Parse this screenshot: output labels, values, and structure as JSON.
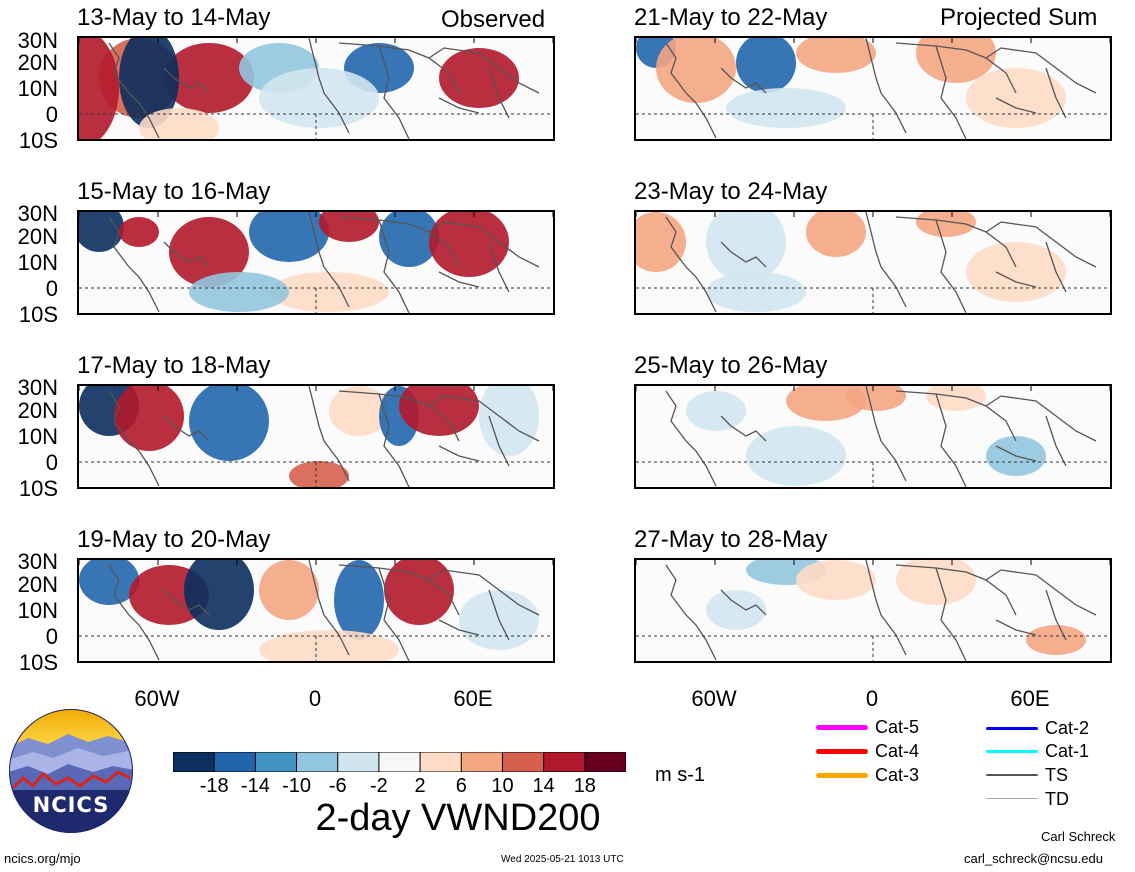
{
  "header": {
    "left_label": "Observed",
    "right_label": "Projected Sum"
  },
  "panels_left": [
    {
      "title": "13-May to 14-May"
    },
    {
      "title": "15-May to 16-May"
    },
    {
      "title": "17-May to 18-May"
    },
    {
      "title": "19-May to 20-May"
    }
  ],
  "panels_right": [
    {
      "title": "21-May to 22-May"
    },
    {
      "title": "23-May to 24-May"
    },
    {
      "title": "25-May to 26-May"
    },
    {
      "title": "27-May to 28-May"
    }
  ],
  "lat_labels": [
    "30N",
    "20N",
    "10N",
    "0",
    "10S"
  ],
  "lon_labels": [
    "60W",
    "0",
    "60E"
  ],
  "colorbar": {
    "ticks": [
      "-18",
      "-14",
      "-10",
      "-6",
      "-2",
      "2",
      "6",
      "10",
      "14",
      "18"
    ],
    "colors": [
      "#0b2f5e",
      "#2166ac",
      "#4393c3",
      "#92c5de",
      "#d1e5f0",
      "#f7f7f7",
      "#fddbc7",
      "#f4a582",
      "#d6604d",
      "#b2182b",
      "#67001f"
    ],
    "units": "m s-1"
  },
  "main_title": "2-day VWND200",
  "legend": {
    "items": [
      {
        "label": "Cat-5",
        "color": "#ff00ff"
      },
      {
        "label": "Cat-4",
        "color": "#ff0000"
      },
      {
        "label": "Cat-3",
        "color": "#ffa500"
      },
      {
        "label": "Cat-2",
        "color": "#0000ff"
      },
      {
        "label": "Cat-1",
        "color": "#00ffff"
      },
      {
        "label": "TS",
        "color": "#555555"
      },
      {
        "label": "TD",
        "color": "#aaaaaa"
      }
    ]
  },
  "logo": {
    "text": "NCICS"
  },
  "footer": {
    "url": "ncics.org/mjo",
    "timestamp": "Wed 2025-05-21 1013 UTC",
    "author": "Carl Schreck",
    "email": "carl_schreck@ncsu.edu"
  }
}
